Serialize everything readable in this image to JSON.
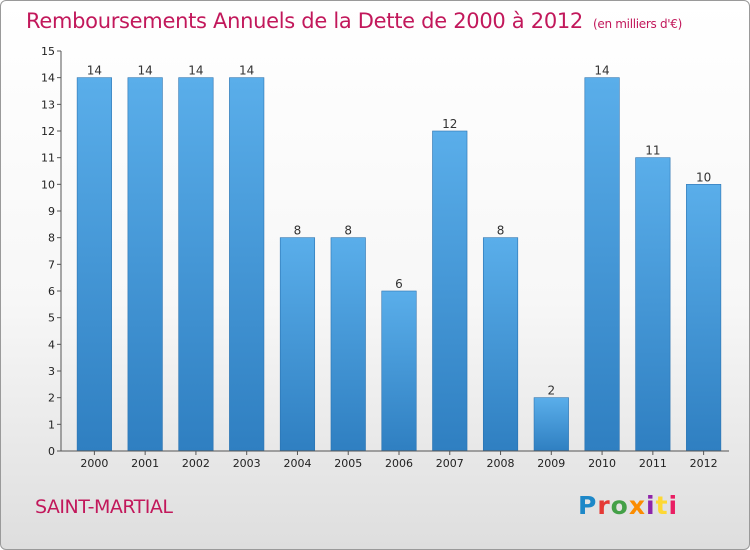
{
  "header": {
    "title": "Remboursements Annuels de la Dette de 2000 à 2012",
    "unit": "(en milliers d'€)"
  },
  "footer": {
    "commune": "SAINT-MARTIAL",
    "logo": {
      "text": "Proxiti",
      "colors": [
        "#1e88c8",
        "#e53935",
        "#43a047",
        "#fb8c00",
        "#8e24aa",
        "#fdd835",
        "#e91e63"
      ]
    }
  },
  "chart_data": {
    "type": "bar",
    "title": "Remboursements Annuels de la Dette de 2000 à 2012",
    "subtitle": "(en milliers d'€)",
    "xlabel": "",
    "ylabel": "",
    "categories": [
      "2000",
      "2001",
      "2002",
      "2003",
      "2004",
      "2005",
      "2006",
      "2007",
      "2008",
      "2009",
      "2010",
      "2011",
      "2012"
    ],
    "values": [
      14,
      14,
      14,
      14,
      8,
      8,
      6,
      12,
      8,
      2,
      14,
      11,
      10
    ],
    "ylim": [
      0,
      15
    ],
    "yticks": [
      "0",
      "1",
      "2",
      "3",
      "4",
      "5",
      "6",
      "7",
      "8",
      "9",
      "10",
      "11",
      "12",
      "13",
      "14",
      "15"
    ],
    "grid": false,
    "colors": {
      "bar_light": "#5aaeea",
      "bar_dark": "#2f7fc1",
      "bar_edge": "#2a72b0",
      "axis": "#555555"
    }
  }
}
